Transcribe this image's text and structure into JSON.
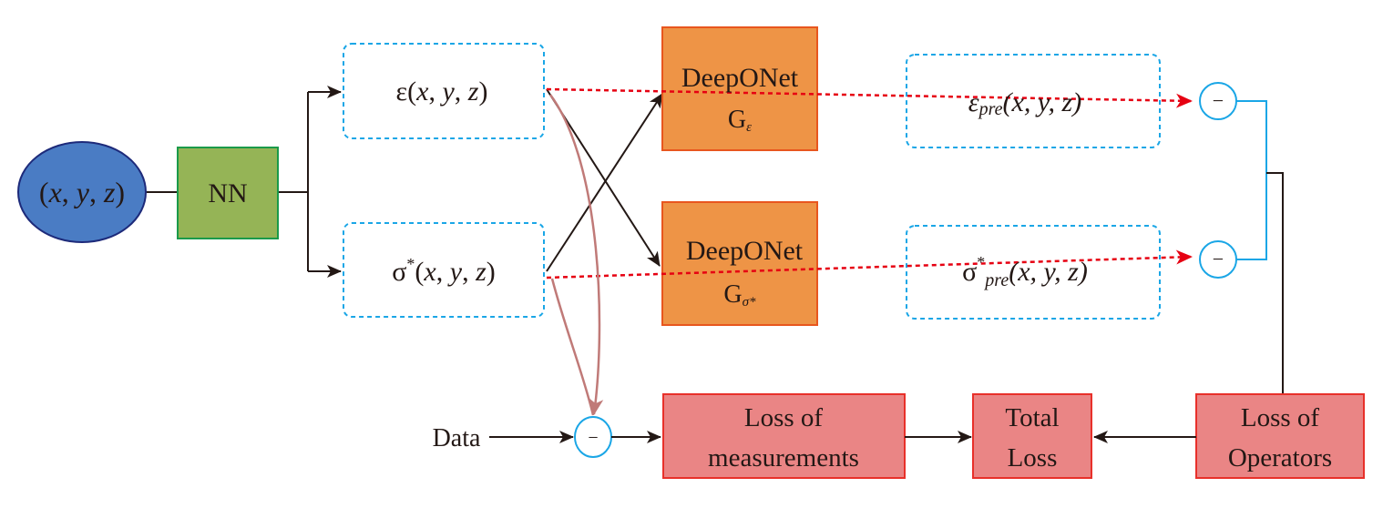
{
  "colors": {
    "input_ellipse": "#4a7cc4",
    "nn_box": "#95b456",
    "deeponet_box": "#ee9446",
    "loss_box": "#ea8585",
    "dashed_box_border": "#1aa6e6",
    "prediction_arrow": "#e60012",
    "measurement_arrow": "#c07a78"
  },
  "input": {
    "label": "(x, y, z)",
    "open": "(",
    "x": "x",
    "c1": ", ",
    "y": "y",
    "c2": ", ",
    "z": "z",
    "close": ")"
  },
  "nn": {
    "label": "NN"
  },
  "fields": {
    "epsilon": {
      "symbol": "ε",
      "args_open": "(",
      "x": "x",
      "c1": ", ",
      "y": "y",
      "c2": ", ",
      "z": "z",
      "args_close": ")"
    },
    "sigma": {
      "symbol": "σ",
      "sup": "*",
      "args_open": "(",
      "x": "x",
      "c1": ", ",
      "y": "y",
      "c2": ", ",
      "z": "z",
      "args_close": ")"
    }
  },
  "deeponets": [
    {
      "title": "DeepONet",
      "op": "G",
      "sub": "ε"
    },
    {
      "title": "DeepONet",
      "op": "G",
      "sub": "σ*"
    }
  ],
  "predictions": {
    "epsilon": {
      "symbol": "ε",
      "sub": "pre",
      "args": "(x, y, z)"
    },
    "sigma": {
      "symbol": "σ",
      "sup": "*",
      "sub": "pre",
      "args": "(x, y, z)"
    }
  },
  "operators": {
    "minus": "−"
  },
  "data_label": "Data",
  "losses": {
    "measurements": {
      "line1": "Loss of",
      "line2": "measurements"
    },
    "total": {
      "line1": "Total",
      "line2": "Loss"
    },
    "operators": {
      "line1": "Loss of",
      "line2": "Operators"
    }
  }
}
